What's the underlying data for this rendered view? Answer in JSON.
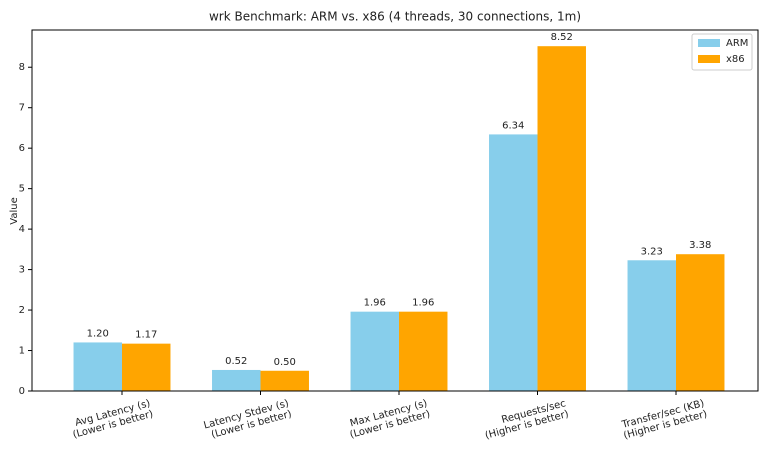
{
  "chart_data": {
    "type": "bar",
    "title": "wrk Benchmark: ARM vs. x86 (4 threads, 30 connections, 1m)",
    "y_label": "Value",
    "categories": [
      "Avg Latency (s)\n(Lower is better)",
      "Latency Stdev (s)\n(Lower is better)",
      "Max Latency (s)\n(Lower is better)",
      "Requests/sec\n(Higher is better)",
      "Transfer/sec (KB)\n(Higher is better)"
    ],
    "series": [
      {
        "name": "ARM",
        "color": "#87ceeb",
        "values": [
          1.2,
          0.52,
          1.96,
          6.34,
          3.23
        ],
        "value_labels": [
          "1.20",
          "0.52",
          "1.96",
          "6.34",
          "3.23"
        ]
      },
      {
        "name": "x86",
        "color": "#ffa500",
        "values": [
          1.17,
          0.5,
          1.96,
          8.52,
          3.38
        ],
        "value_labels": [
          "1.17",
          "0.50",
          "1.96",
          "8.52",
          "3.38"
        ]
      }
    ],
    "ylim": [
      0,
      8.92
    ],
    "yticks": [
      0,
      1,
      2,
      3,
      4,
      5,
      6,
      7,
      8
    ],
    "legend": "upper right"
  }
}
